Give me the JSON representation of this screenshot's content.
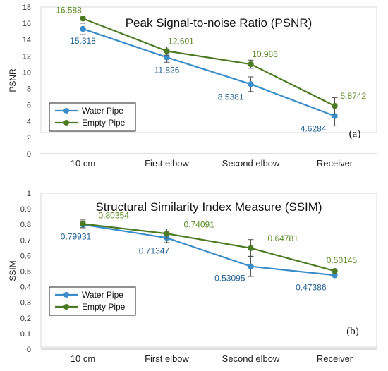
{
  "chart_data": [
    {
      "type": "line",
      "title": "Peak Signal-to-noise Ratio (PSNR)",
      "ylabel": "PSNR",
      "xlabel": "",
      "panel_label": "(a)",
      "categories": [
        "10 cm",
        "First elbow",
        "Second elbow",
        "Receiver"
      ],
      "ylim": [
        0,
        18
      ],
      "yticks": [
        0,
        2,
        4,
        6,
        8,
        10,
        12,
        14,
        16,
        18
      ],
      "grid": false,
      "legend_position": "bottom-left",
      "series": [
        {
          "name": "Water Pipe",
          "color": "#3a8dc9",
          "label_color": "#1f5f95",
          "values": [
            15.318,
            11.826,
            8.5381,
            4.6284
          ],
          "labels": [
            "15.318",
            "11.826",
            "8.5381",
            "4.6284"
          ],
          "error": [
            0.7,
            0.6,
            0.9,
            1.2
          ]
        },
        {
          "name": "Empty Pipe",
          "color": "#4b7a23",
          "label_color": "#5c8a23",
          "values": [
            16.588,
            12.601,
            10.986,
            5.8742
          ],
          "labels": [
            "16.588",
            "12.601",
            "10.986",
            "5.8742"
          ],
          "error": [
            0.2,
            0.5,
            0.5,
            1.0
          ]
        }
      ]
    },
    {
      "type": "line",
      "title": "Structural Similarity Index Measure (SSIM)",
      "ylabel": "SSIM",
      "xlabel": "",
      "panel_label": "(b)",
      "categories": [
        "10 cm",
        "First elbow",
        "Second elbow",
        "Receiver"
      ],
      "ylim": [
        0,
        1
      ],
      "yticks": [
        0,
        0.1,
        0.2,
        0.3,
        0.4,
        0.5,
        0.6,
        0.7,
        0.8,
        0.9,
        1
      ],
      "grid": false,
      "legend_position": "bottom-left",
      "series": [
        {
          "name": "Water Pipe",
          "color": "#3a8dc9",
          "label_color": "#1f5f95",
          "values": [
            0.79931,
            0.71347,
            0.53095,
            0.47386
          ],
          "labels": [
            "0.79931",
            "0.71347",
            "0.53095",
            "0.47386"
          ],
          "error": [
            0.02,
            0.03,
            0.065,
            0
          ]
        },
        {
          "name": "Empty Pipe",
          "color": "#4b7a23",
          "label_color": "#5c8a23",
          "values": [
            0.80354,
            0.74091,
            0.64781,
            0.50145
          ],
          "labels": [
            "0.80354",
            "0.74091",
            "0.64781",
            "0.50145"
          ],
          "error": [
            0.025,
            0.03,
            0.055,
            0
          ]
        }
      ]
    }
  ]
}
